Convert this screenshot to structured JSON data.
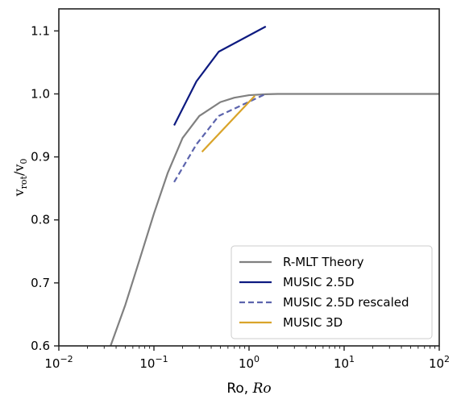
{
  "chart_data": {
    "type": "line",
    "title": "",
    "xlabel": "Ro, ",
    "xlabel_script": "Ro",
    "ylabel_main": "v",
    "ylabel_sub": "rot",
    "ylabel_slash": "/v",
    "ylabel_sub0": "0",
    "xscale": "log",
    "xlim": [
      0.01,
      100
    ],
    "ylim": [
      0.6,
      1.135
    ],
    "x_tick_values": [
      0.01,
      0.1,
      1,
      10,
      100
    ],
    "x_tick_labels": [
      {
        "base": "10",
        "exp": "−2"
      },
      {
        "base": "10",
        "exp": "−1"
      },
      {
        "base": "10",
        "exp": "0"
      },
      {
        "base": "10",
        "exp": "1"
      },
      {
        "base": "10",
        "exp": "2"
      }
    ],
    "y_ticks": [
      0.6,
      0.7,
      0.8,
      0.9,
      1.0,
      1.1
    ],
    "y_tick_labels": [
      "0.6",
      "0.7",
      "0.8",
      "0.9",
      "1.0",
      "1.1"
    ],
    "grid": false,
    "legend_position": "lower-right",
    "series": [
      {
        "name": "R-MLT Theory",
        "color": "#808080",
        "style": "solid",
        "x": [
          0.035,
          0.05,
          0.07,
          0.1,
          0.14,
          0.2,
          0.3,
          0.5,
          0.7,
          1.0,
          1.5,
          2,
          3,
          5,
          10,
          20,
          50,
          100
        ],
        "y": [
          0.6,
          0.665,
          0.735,
          0.81,
          0.875,
          0.93,
          0.965,
          0.987,
          0.994,
          0.998,
          0.9995,
          1.0,
          1.0,
          1.0,
          1.0,
          1.0,
          1.0,
          1.0
        ]
      },
      {
        "name": "MUSIC 2.5D",
        "color": "#0d1a80",
        "style": "solid",
        "x": [
          0.163,
          0.28,
          0.48,
          1.5
        ],
        "y": [
          0.95,
          1.02,
          1.067,
          1.107
        ]
      },
      {
        "name": "MUSIC 2.5D rescaled",
        "color": "#5c64ad",
        "style": "dashed",
        "x": [
          0.163,
          0.28,
          0.48,
          1.5
        ],
        "y": [
          0.86,
          0.92,
          0.965,
          1.0
        ]
      },
      {
        "name": "MUSIC 3D",
        "color": "#d9a42a",
        "style": "solid",
        "x": [
          0.32,
          1.15
        ],
        "y": [
          0.908,
          0.997
        ]
      }
    ]
  }
}
